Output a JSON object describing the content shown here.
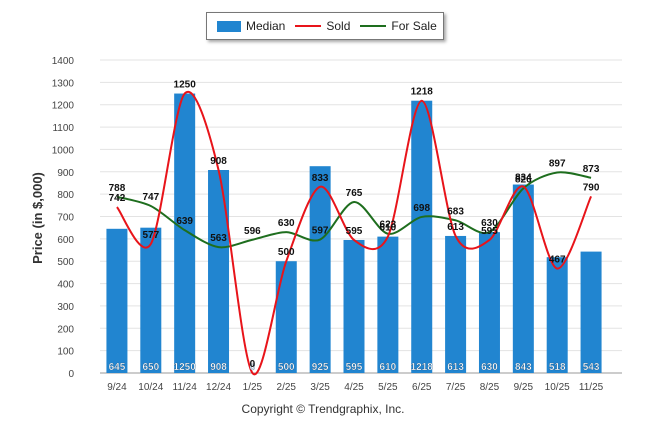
{
  "legend": {
    "median": "Median",
    "sold": "Sold",
    "for_sale": "For Sale"
  },
  "copyright": "Copyright © Trendgraphix, Inc.",
  "colors": {
    "median": "#2185d0",
    "sold": "#e8141a",
    "for_sale": "#1e6e1e"
  },
  "chart_data": {
    "type": "bar",
    "title": "",
    "xlabel": "",
    "ylabel": "Price (in $,000)",
    "ylim": [
      0,
      1400
    ],
    "yticks": [
      "0",
      "100",
      "200",
      "300",
      "400",
      "500",
      "600",
      "700",
      "800",
      "900",
      "1000",
      "1100",
      "1200",
      "1300",
      "1400"
    ],
    "categories": [
      "9/24",
      "10/24",
      "11/24",
      "12/24",
      "1/25",
      "2/25",
      "3/25",
      "4/25",
      "5/25",
      "6/25",
      "7/25",
      "8/25",
      "9/25",
      "10/25",
      "11/25"
    ],
    "series": [
      {
        "name": "Median",
        "kind": "bar",
        "values": [
          645,
          650,
          1250,
          908,
          0,
          500,
          925,
          595,
          610,
          1218,
          613,
          630,
          843,
          518,
          543
        ]
      },
      {
        "name": "Sold",
        "kind": "line",
        "values": [
          742,
          577,
          1250,
          908,
          0,
          500,
          833,
          595,
          610,
          1218,
          613,
          595,
          834,
          467,
          790
        ]
      },
      {
        "name": "For Sale",
        "kind": "line",
        "values": [
          788,
          747,
          639,
          563,
          596,
          630,
          597,
          765,
          623,
          698,
          683,
          630,
          826,
          897,
          873
        ]
      }
    ]
  }
}
